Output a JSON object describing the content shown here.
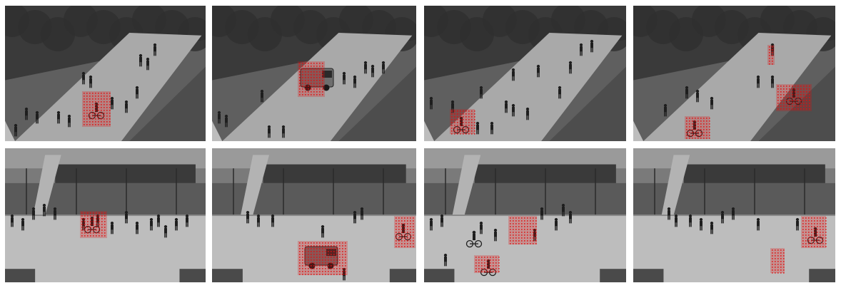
{
  "palette": {
    "background": "#ffffff",
    "pavement": "#a9a9a9",
    "pavement_light": "#bdbdbd",
    "grass": "#5f5f5f",
    "foliage": "#3a3a3a",
    "person": "#1e1e1e",
    "highlight": "#e01010"
  },
  "rows": [
    {
      "scene": "walkway-campus",
      "frames": [
        {
          "id": "r1f1",
          "anomaly": "bicycle"
        },
        {
          "id": "r1f2",
          "anomaly": "vehicle"
        },
        {
          "id": "r1f3",
          "anomaly": "bicycle"
        },
        {
          "id": "r1f4",
          "anomaly": "bicycle"
        }
      ]
    },
    {
      "scene": "plaza-campus",
      "frames": [
        {
          "id": "r2f1",
          "anomaly": "bicycle"
        },
        {
          "id": "r2f2",
          "anomaly": "vehicle"
        },
        {
          "id": "r2f3",
          "anomaly": "bicycle"
        },
        {
          "id": "r2f4",
          "anomaly": "bicycle"
        }
      ]
    }
  ]
}
